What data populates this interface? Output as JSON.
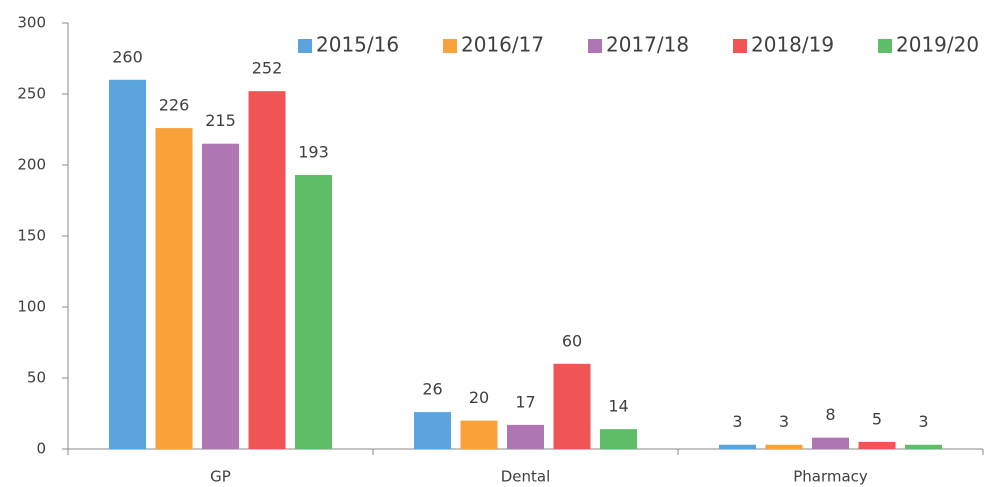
{
  "chart_data": {
    "type": "bar",
    "categories": [
      "GP",
      "Dental",
      "Pharmacy"
    ],
    "series": [
      {
        "name": "2015/16",
        "color": "#5ba3dc",
        "values": [
          260,
          26,
          3
        ]
      },
      {
        "name": "2016/17",
        "color": "#f9a23a",
        "values": [
          226,
          20,
          3
        ]
      },
      {
        "name": "2017/18",
        "color": "#b075b3",
        "values": [
          215,
          17,
          8
        ]
      },
      {
        "name": "2018/19",
        "color": "#f05454",
        "values": [
          252,
          60,
          5
        ]
      },
      {
        "name": "2019/20",
        "color": "#5fbf68",
        "values": [
          193,
          14,
          3
        ]
      }
    ],
    "ylim": [
      0,
      300
    ],
    "yticks": [
      0,
      50,
      100,
      150,
      200,
      250,
      300
    ],
    "grid": false,
    "legend": "top"
  }
}
